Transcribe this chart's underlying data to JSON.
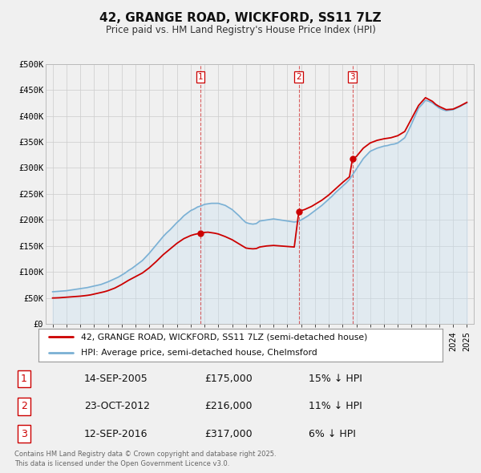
{
  "title": "42, GRANGE ROAD, WICKFORD, SS11 7LZ",
  "subtitle": "Price paid vs. HM Land Registry's House Price Index (HPI)",
  "hpi_label": "HPI: Average price, semi-detached house, Chelmsford",
  "property_label": "42, GRANGE ROAD, WICKFORD, SS11 7LZ (semi-detached house)",
  "property_color": "#cc0000",
  "hpi_color": "#7ab0d4",
  "hpi_fill_color": "#c5dff0",
  "background_color": "#f0f0f0",
  "plot_bg_color": "#f0f0f0",
  "ylim": [
    0,
    500000
  ],
  "yticks": [
    0,
    50000,
    100000,
    150000,
    200000,
    250000,
    300000,
    350000,
    400000,
    450000,
    500000
  ],
  "ytick_labels": [
    "£0",
    "£50K",
    "£100K",
    "£150K",
    "£200K",
    "£250K",
    "£300K",
    "£350K",
    "£400K",
    "£450K",
    "£500K"
  ],
  "transactions": [
    {
      "num": 1,
      "date": "14-SEP-2005",
      "price": 175000,
      "pct": "15%",
      "dir": "↓",
      "x_year": 2005.71
    },
    {
      "num": 2,
      "date": "23-OCT-2012",
      "price": 216000,
      "pct": "11%",
      "dir": "↓",
      "x_year": 2012.83
    },
    {
      "num": 3,
      "date": "12-SEP-2016",
      "price": 317000,
      "pct": "6%",
      "dir": "↓",
      "x_year": 2016.71
    }
  ],
  "hpi_x": [
    1995,
    1995.25,
    1995.5,
    1995.75,
    1996,
    1996.25,
    1996.5,
    1996.75,
    1997,
    1997.25,
    1997.5,
    1997.75,
    1998,
    1998.25,
    1998.5,
    1998.75,
    1999,
    1999.25,
    1999.5,
    1999.75,
    2000,
    2000.25,
    2000.5,
    2000.75,
    2001,
    2001.25,
    2001.5,
    2001.75,
    2002,
    2002.25,
    2002.5,
    2002.75,
    2003,
    2003.25,
    2003.5,
    2003.75,
    2004,
    2004.25,
    2004.5,
    2004.75,
    2005,
    2005.25,
    2005.5,
    2005.75,
    2006,
    2006.25,
    2006.5,
    2006.75,
    2007,
    2007.25,
    2007.5,
    2007.75,
    2008,
    2008.25,
    2008.5,
    2008.75,
    2009,
    2009.25,
    2009.5,
    2009.75,
    2010,
    2010.25,
    2010.5,
    2010.75,
    2011,
    2011.25,
    2011.5,
    2011.75,
    2012,
    2012.25,
    2012.5,
    2012.75,
    2013,
    2013.25,
    2013.5,
    2013.75,
    2014,
    2014.25,
    2014.5,
    2014.75,
    2015,
    2015.25,
    2015.5,
    2015.75,
    2016,
    2016.25,
    2016.5,
    2016.75,
    2017,
    2017.25,
    2017.5,
    2017.75,
    2018,
    2018.25,
    2018.5,
    2018.75,
    2019,
    2019.25,
    2019.5,
    2019.75,
    2020,
    2020.25,
    2020.5,
    2020.75,
    2021,
    2021.25,
    2021.5,
    2021.75,
    2022,
    2022.25,
    2022.5,
    2022.75,
    2023,
    2023.25,
    2023.5,
    2023.75,
    2024,
    2024.25,
    2024.5,
    2024.75,
    2025
  ],
  "hpi_y": [
    62000,
    62500,
    63000,
    63500,
    64000,
    65000,
    66000,
    67000,
    68000,
    69000,
    70000,
    71500,
    73000,
    74500,
    76000,
    78500,
    81000,
    84000,
    87000,
    90000,
    94000,
    98000,
    103000,
    107000,
    112000,
    117000,
    122000,
    129000,
    136000,
    144000,
    152000,
    160000,
    168000,
    175000,
    181000,
    188000,
    195000,
    201000,
    208000,
    213000,
    218000,
    221000,
    225000,
    227000,
    230000,
    231000,
    232000,
    232000,
    232000,
    230000,
    228000,
    224000,
    220000,
    214000,
    208000,
    201000,
    195000,
    193000,
    192000,
    193000,
    198000,
    199000,
    200000,
    201000,
    202000,
    201000,
    200000,
    199000,
    198000,
    197000,
    196000,
    197000,
    200000,
    204000,
    208000,
    213000,
    218000,
    223000,
    228000,
    234000,
    240000,
    246000,
    253000,
    259000,
    265000,
    271000,
    278000,
    288000,
    298000,
    308000,
    318000,
    325000,
    332000,
    335000,
    338000,
    340000,
    342000,
    343000,
    345000,
    346000,
    348000,
    353000,
    358000,
    371000,
    385000,
    400000,
    415000,
    422000,
    430000,
    428000,
    425000,
    420000,
    415000,
    412000,
    410000,
    411000,
    412000,
    415000,
    418000,
    422000,
    425000
  ],
  "prop_x": [
    1995,
    1995.25,
    1995.5,
    1995.75,
    1996,
    1996.25,
    1996.5,
    1996.75,
    1997,
    1997.25,
    1997.5,
    1997.75,
    1998,
    1998.25,
    1998.5,
    1998.75,
    1999,
    1999.25,
    1999.5,
    1999.75,
    2000,
    2000.25,
    2000.5,
    2000.75,
    2001,
    2001.25,
    2001.5,
    2001.75,
    2002,
    2002.25,
    2002.5,
    2002.75,
    2003,
    2003.25,
    2003.5,
    2003.75,
    2004,
    2004.25,
    2004.5,
    2004.75,
    2005,
    2005.25,
    2005.5,
    2005.71,
    2006,
    2006.25,
    2006.5,
    2006.75,
    2007,
    2007.25,
    2007.5,
    2007.75,
    2008,
    2008.25,
    2008.5,
    2008.75,
    2009,
    2009.25,
    2009.5,
    2009.75,
    2010,
    2010.25,
    2010.5,
    2010.75,
    2011,
    2011.25,
    2011.5,
    2011.75,
    2012,
    2012.25,
    2012.5,
    2012.83,
    2013,
    2013.25,
    2013.5,
    2013.75,
    2014,
    2014.25,
    2014.5,
    2014.75,
    2015,
    2015.25,
    2015.5,
    2015.75,
    2016,
    2016.25,
    2016.5,
    2016.71,
    2017,
    2017.25,
    2017.5,
    2017.75,
    2018,
    2018.25,
    2018.5,
    2018.75,
    2019,
    2019.25,
    2019.5,
    2019.75,
    2020,
    2020.25,
    2020.5,
    2020.75,
    2021,
    2021.25,
    2021.5,
    2021.75,
    2022,
    2022.25,
    2022.5,
    2022.75,
    2023,
    2023.25,
    2023.5,
    2023.75,
    2024,
    2024.25,
    2024.5,
    2024.75,
    2025
  ],
  "prop_y": [
    50000,
    50200,
    50500,
    51000,
    51500,
    52000,
    52500,
    53000,
    53500,
    54200,
    55000,
    56000,
    57500,
    59000,
    60500,
    62000,
    64000,
    66500,
    69000,
    72500,
    76000,
    80000,
    84000,
    87500,
    91000,
    94500,
    98000,
    103000,
    108000,
    114000,
    120000,
    126500,
    133000,
    138500,
    144000,
    149500,
    155000,
    159500,
    164000,
    167000,
    170000,
    172000,
    173500,
    175000,
    176000,
    176500,
    175500,
    174500,
    173000,
    170500,
    168000,
    165000,
    162000,
    158000,
    154000,
    150000,
    146000,
    145000,
    144500,
    145000,
    148000,
    149000,
    150000,
    150500,
    151000,
    150500,
    150000,
    149500,
    149000,
    148500,
    148000,
    216000,
    218000,
    220000,
    223000,
    226000,
    230000,
    234000,
    238000,
    243000,
    248000,
    254000,
    260000,
    266000,
    272000,
    277500,
    283000,
    317000,
    322000,
    330000,
    338000,
    343000,
    348000,
    350500,
    353000,
    354500,
    356000,
    357000,
    358000,
    360000,
    362000,
    366000,
    370000,
    382500,
    395000,
    407500,
    420000,
    427500,
    435000,
    431500,
    428000,
    422000,
    418000,
    415000,
    412000,
    412500,
    413000,
    416000,
    419000,
    422500,
    426000
  ],
  "footer": "Contains HM Land Registry data © Crown copyright and database right 2025.\nThis data is licensed under the Open Government Licence v3.0.",
  "xtick_years": [
    1995,
    1996,
    1997,
    1998,
    1999,
    2000,
    2001,
    2002,
    2003,
    2004,
    2005,
    2006,
    2007,
    2008,
    2009,
    2010,
    2011,
    2012,
    2013,
    2014,
    2015,
    2016,
    2017,
    2018,
    2019,
    2020,
    2021,
    2022,
    2023,
    2024,
    2025
  ],
  "xlim": [
    1994.5,
    2025.5
  ]
}
